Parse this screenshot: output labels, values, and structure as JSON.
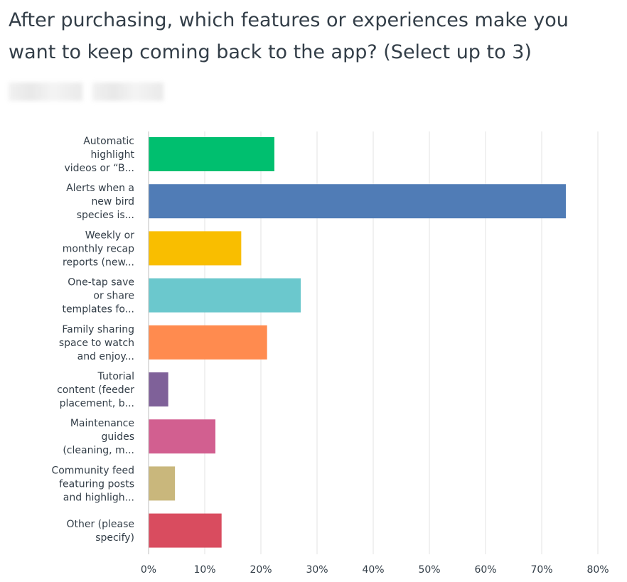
{
  "question": {
    "line1": "After purchasing, which features or experiences make you",
    "line2": "want to keep coming back to the app? (Select up to 3)"
  },
  "chart_data": {
    "type": "bar",
    "orientation": "horizontal",
    "xlim": [
      0,
      80
    ],
    "grid": true,
    "x_ticks": [
      "0%",
      "10%",
      "20%",
      "30%",
      "40%",
      "50%",
      "60%",
      "70%",
      "80%"
    ],
    "categories": [
      [
        "Automatic",
        "highlight",
        "videos or “B..."
      ],
      [
        "Alerts when a",
        "new bird",
        "species is..."
      ],
      [
        "Weekly or",
        "monthly recap",
        "reports (new..."
      ],
      [
        "One-tap save",
        "or share",
        "templates fo..."
      ],
      [
        "Family sharing",
        "space to watch",
        "and enjoy..."
      ],
      [
        "Tutorial",
        "content (feeder",
        "placement, b..."
      ],
      [
        "Maintenance",
        "guides",
        "(cleaning, m..."
      ],
      [
        "Community feed",
        "featuring posts",
        "and highligh..."
      ],
      [
        "Other (please",
        "specify)"
      ]
    ],
    "values": [
      22.4,
      74.3,
      16.5,
      27.1,
      21.1,
      3.5,
      11.9,
      4.7,
      13.0
    ],
    "colors": [
      "#00bf6f",
      "#507cb6",
      "#f9be00",
      "#6bc8cd",
      "#ff8b4f",
      "#7f6199",
      "#d25f90",
      "#c9b77c",
      "#d94c5f"
    ]
  }
}
